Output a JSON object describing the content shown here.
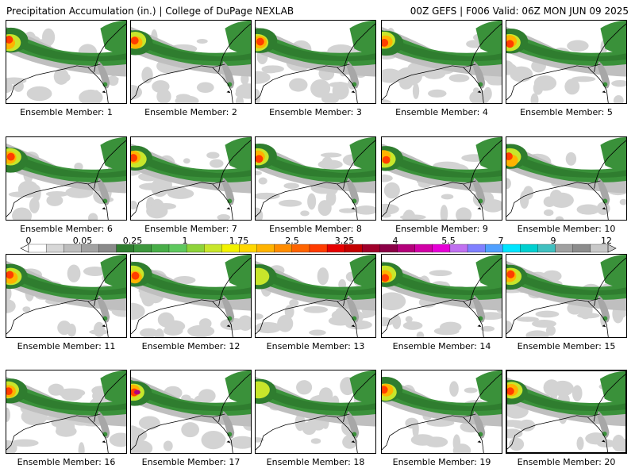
{
  "header": {
    "title": "Precipitation Accumulation (in.) | College of DuPage NEXLAB",
    "run_info": "00Z GEFS | F006 Valid: 06Z MON JUN 09 2025"
  },
  "colorbar": {
    "labels": [
      "0",
      "0.05",
      "0.25",
      "1",
      "1.75",
      "2.5",
      "3.25",
      "4",
      "5.5",
      "7",
      "9",
      "12"
    ],
    "colors": [
      "#ffffff",
      "#d7d7d7",
      "#bdbdbd",
      "#a2a2a2",
      "#8a8a8a",
      "#2f7d2f",
      "#3d973d",
      "#48ad48",
      "#5ec85e",
      "#8ed33a",
      "#c8e62b",
      "#f2f200",
      "#ffd700",
      "#ffb300",
      "#ff8c00",
      "#ff6400",
      "#ff3c00",
      "#e60000",
      "#c40000",
      "#a0002a",
      "#8b0047",
      "#b3007a",
      "#d100a6",
      "#e600d6",
      "#c070f0",
      "#8080ff",
      "#50a0ff",
      "#00e5ff",
      "#00d0d0",
      "#40c0c0",
      "#a0a0a0",
      "#8c8c8c",
      "#c8c8c8"
    ]
  },
  "members": [
    {
      "label": "Ensemble Member: 1"
    },
    {
      "label": "Ensemble Member: 2"
    },
    {
      "label": "Ensemble Member: 3"
    },
    {
      "label": "Ensemble Member: 4"
    },
    {
      "label": "Ensemble Member: 5"
    },
    {
      "label": "Ensemble Member: 6"
    },
    {
      "label": "Ensemble Member: 7"
    },
    {
      "label": "Ensemble Member: 8"
    },
    {
      "label": "Ensemble Member: 9"
    },
    {
      "label": "Ensemble Member: 10"
    },
    {
      "label": "Ensemble Member: 11"
    },
    {
      "label": "Ensemble Member: 12"
    },
    {
      "label": "Ensemble Member: 13"
    },
    {
      "label": "Ensemble Member: 14"
    },
    {
      "label": "Ensemble Member: 15"
    },
    {
      "label": "Ensemble Member: 16"
    },
    {
      "label": "Ensemble Member: 17"
    },
    {
      "label": "Ensemble Member: 18"
    },
    {
      "label": "Ensemble Member: 19"
    },
    {
      "label": "Ensemble Member: 20"
    }
  ]
}
